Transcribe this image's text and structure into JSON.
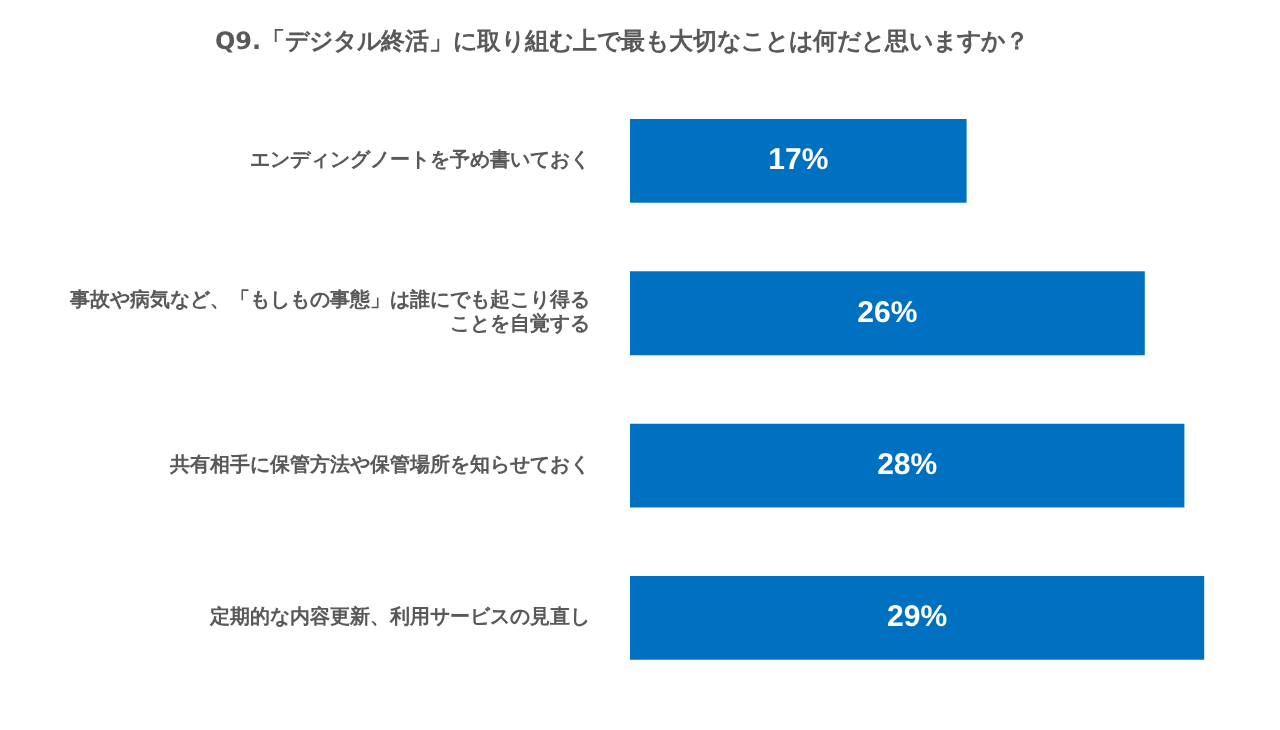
{
  "chart_data": {
    "type": "bar",
    "orientation": "horizontal",
    "title": "Q9.「デジタル終活」に取り組む上で最も大切なことは何だと思いますか？",
    "categories": [
      "エンディングノートを予め書いておく",
      "事故や病気など、「もしもの事態」は誰にでも起こり得ることを自覚する",
      "共有相手に保管方法や保管場所を知らせておく",
      "定期的な内容更新、利用サービスの見直し"
    ],
    "values": [
      17,
      26,
      28,
      29
    ],
    "value_labels": [
      "17%",
      "26%",
      "28%",
      "29%"
    ],
    "color": "#0070c0"
  }
}
